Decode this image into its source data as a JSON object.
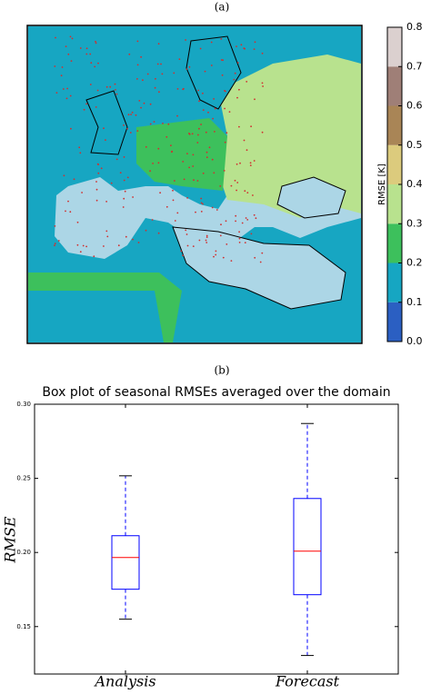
{
  "chart_data": [
    {
      "type": "map",
      "label": "(a)",
      "colorbar": {
        "label": "RMSE [K]",
        "ticks": [
          {
            "value": 0,
            "label": "0.0"
          },
          0.1,
          0.2,
          0.3,
          0.4,
          0.5,
          0.6,
          0.7,
          0.8
        ],
        "colors": [
          "#2b5fc2",
          "#16a6c2",
          "#3dc05c",
          "#b8e28e",
          "#dccb7d",
          "#a98556",
          "#9f7f77",
          "#dbd0cf"
        ]
      }
    },
    {
      "type": "box",
      "label": "(b)",
      "title": "Box plot of seasonal RMSEs averaged over the domain",
      "ylabel": "RMSE",
      "categories": [
        "Analysis",
        "Forecast"
      ],
      "series": [
        {
          "color": "#0000ff",
          "median_color": "#ff0000",
          "whislo": [
            0.155,
            0.1305
          ],
          "q1": [
            0.1752,
            0.1715
          ],
          "median": [
            0.1966,
            0.2009
          ],
          "q3": [
            0.2113,
            0.2364
          ],
          "whishi": [
            0.2517,
            0.287
          ]
        }
      ],
      "ylim": [
        0.118,
        0.3
      ],
      "yticks": [
        0.15,
        {
          "value": 0.2,
          "label": "0.20"
        },
        0.25,
        {
          "value": 0.3,
          "label": "0.30"
        }
      ]
    }
  ]
}
